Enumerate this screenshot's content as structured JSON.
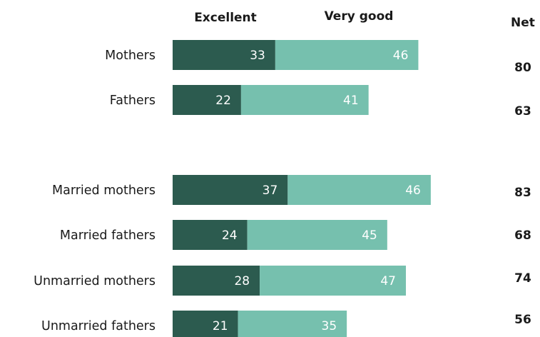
{
  "chart_data": {
    "type": "bar",
    "orientation": "horizontal",
    "stacked": true,
    "categories": [
      "Mothers",
      "Fathers",
      "Married mothers",
      "Married fathers",
      "Unmarried mothers",
      "Unmarried fathers"
    ],
    "series": [
      {
        "name": "Excellent",
        "values": [
          33,
          22,
          37,
          24,
          28,
          21
        ],
        "color": "#2c5b4f"
      },
      {
        "name": "Very good",
        "values": [
          46,
          41,
          46,
          45,
          47,
          35
        ],
        "color": "#76c0ae"
      }
    ],
    "net_header": "Net",
    "net_values": [
      "80",
      "63",
      "83",
      "68",
      "74",
      "56"
    ],
    "groups": [
      [
        0,
        1
      ],
      [
        2,
        3,
        4,
        5
      ]
    ],
    "legend_placement": "top",
    "grid": false
  }
}
